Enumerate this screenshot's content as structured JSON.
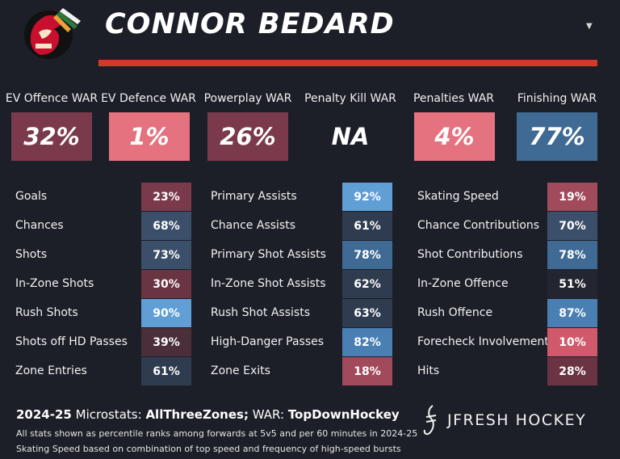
{
  "header": {
    "title": "CONNOR BEDARD",
    "logo_icon": "blackhawks-logo-icon",
    "accent_color": "#d23a2c"
  },
  "war": [
    {
      "label": "EV Offence WAR",
      "value": "32%",
      "color": "#7a3a4b"
    },
    {
      "label": "EV Defence WAR",
      "value": "1%",
      "color": "#e5727f"
    },
    {
      "label": "Powerplay WAR",
      "value": "26%",
      "color": "#7a3a4b"
    },
    {
      "label": "Penalty Kill WAR",
      "value": "NA",
      "color": "#1c1f28"
    },
    {
      "label": "Penalties WAR",
      "value": "4%",
      "color": "#e5727f"
    },
    {
      "label": "Finishing WAR",
      "value": "77%",
      "color": "#3f6a94"
    }
  ],
  "columns": [
    {
      "rows": [
        {
          "label": "Goals",
          "value": "23%",
          "color": "#7a3a4b"
        },
        {
          "label": "Chances",
          "value": "68%",
          "color": "#3b4f6a"
        },
        {
          "label": "Shots",
          "value": "73%",
          "color": "#3b4f6a"
        },
        {
          "label": "In-Zone Shots",
          "value": "30%",
          "color": "#6a3443"
        },
        {
          "label": "Rush Shots",
          "value": "90%",
          "color": "#5f9fd6"
        },
        {
          "label": "Shots off HD Passes",
          "value": "39%",
          "color": "#4a2f3b"
        },
        {
          "label": "Zone Entries",
          "value": "61%",
          "color": "#2f3b4f"
        }
      ]
    },
    {
      "rows": [
        {
          "label": "Primary Assists",
          "value": "92%",
          "color": "#5f9fd6"
        },
        {
          "label": "Chance Assists",
          "value": "61%",
          "color": "#2f3b4f"
        },
        {
          "label": "Primary Shot Assists",
          "value": "78%",
          "color": "#3f6a94"
        },
        {
          "label": "In-Zone Shot Assists",
          "value": "62%",
          "color": "#2f3b4f"
        },
        {
          "label": "Rush Shot Assists",
          "value": "63%",
          "color": "#2f3b4f"
        },
        {
          "label": "High-Danger Passes",
          "value": "82%",
          "color": "#4a7fb3"
        },
        {
          "label": "Zone Exits",
          "value": "18%",
          "color": "#a04a5c"
        }
      ]
    },
    {
      "rows": [
        {
          "label": "Skating Speed",
          "value": "19%",
          "color": "#a04a5c"
        },
        {
          "label": "Chance Contributions",
          "value": "70%",
          "color": "#3b4f6a"
        },
        {
          "label": "Shot Contributions",
          "value": "78%",
          "color": "#3f6a94"
        },
        {
          "label": "In-Zone Offence",
          "value": "51%",
          "color": "#232630"
        },
        {
          "label": "Rush Offence",
          "value": "87%",
          "color": "#4a7fb3"
        },
        {
          "label": "Forecheck Involvement",
          "value": "10%",
          "color": "#d05a6c"
        },
        {
          "label": "Hits",
          "value": "28%",
          "color": "#6a3443"
        }
      ]
    }
  ],
  "footer": {
    "season": "2024-25",
    "micro_label": "Microstats:",
    "micro_source": "AllThreeZones;",
    "war_label": "WAR:",
    "war_source": "TopDownHockey",
    "note1": "All stats shown as percentile ranks among forwards at 5v5 and per 60 minutes in 2024-25",
    "note2": "Skating Speed based on combination of top speed and frequency of high-speed bursts",
    "brand": "JFRESH HOCKEY"
  }
}
